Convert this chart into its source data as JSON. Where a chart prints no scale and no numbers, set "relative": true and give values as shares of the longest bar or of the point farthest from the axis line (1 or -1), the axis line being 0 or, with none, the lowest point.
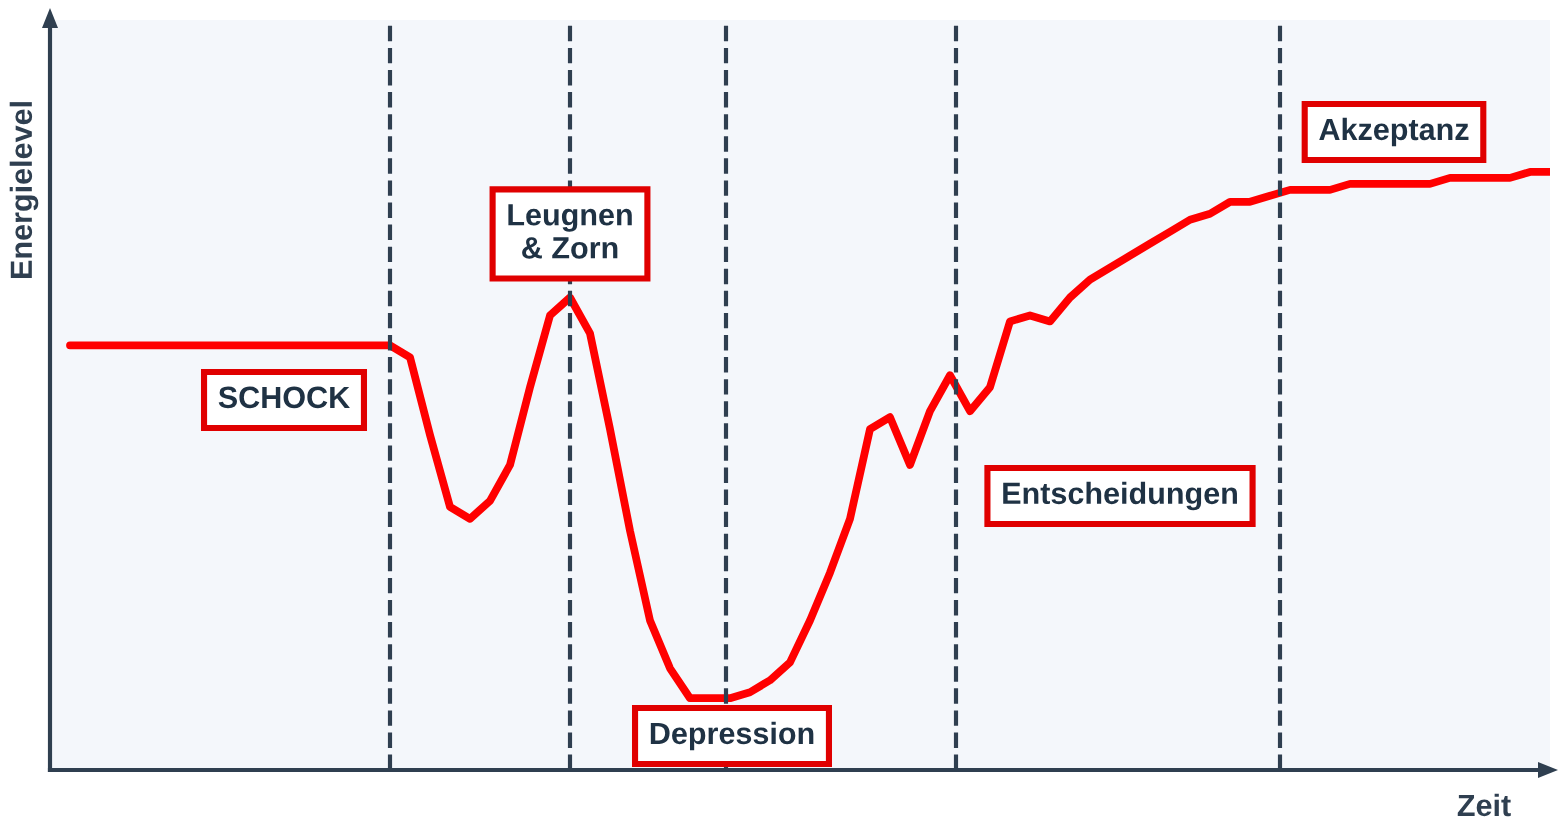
{
  "chart_data": {
    "type": "line",
    "relative": true,
    "xlabel": "Zeit",
    "ylabel": "Energielevel",
    "categories": [
      null,
      null,
      null,
      null,
      null,
      null,
      null,
      null,
      null,
      null,
      null,
      null,
      null,
      null,
      null,
      null,
      null,
      null,
      null,
      null,
      null,
      null,
      null,
      null,
      null,
      null,
      null,
      null,
      null,
      null,
      null,
      null,
      null,
      null,
      null,
      null,
      null,
      null,
      null,
      null,
      null,
      null,
      null,
      null,
      null,
      null,
      null,
      null,
      null,
      null,
      null,
      null,
      null,
      null,
      null,
      null,
      null,
      null,
      null,
      null,
      null,
      null,
      null,
      null,
      null,
      null,
      null,
      null,
      null,
      null,
      null,
      null,
      null,
      null,
      null
    ],
    "series": [
      {
        "color": "#ff0000",
        "values": [
          0.71,
          0.71,
          0.71,
          0.71,
          0.71,
          0.71,
          0.71,
          0.71,
          0.71,
          0.71,
          0.71,
          0.71,
          0.71,
          0.71,
          0.71,
          0.71,
          0.71,
          0.69,
          0.56,
          0.44,
          0.42,
          0.45,
          0.51,
          0.64,
          0.76,
          0.79,
          0.73,
          0.57,
          0.4,
          0.25,
          0.17,
          0.12,
          0.12,
          0.12,
          0.13,
          0.15,
          0.18,
          0.25,
          0.33,
          0.42,
          0.57,
          0.59,
          0.51,
          0.6,
          0.66,
          0.6,
          0.64,
          0.75,
          0.76,
          0.75,
          0.79,
          0.82,
          0.84,
          0.86,
          0.88,
          0.9,
          0.92,
          0.93,
          0.95,
          0.95,
          0.96,
          0.97,
          0.97,
          0.97,
          0.98,
          0.98,
          0.98,
          0.98,
          0.98,
          0.99,
          0.99,
          0.99,
          0.99,
          1.0,
          1.0
        ]
      }
    ],
    "annotations": [
      "SCHOCK",
      "Leugnen\n& Zorn",
      "Depression",
      "Entscheidungen",
      "Akzeptanz"
    ],
    "line_style": "solid",
    "marker": "none"
  }
}
